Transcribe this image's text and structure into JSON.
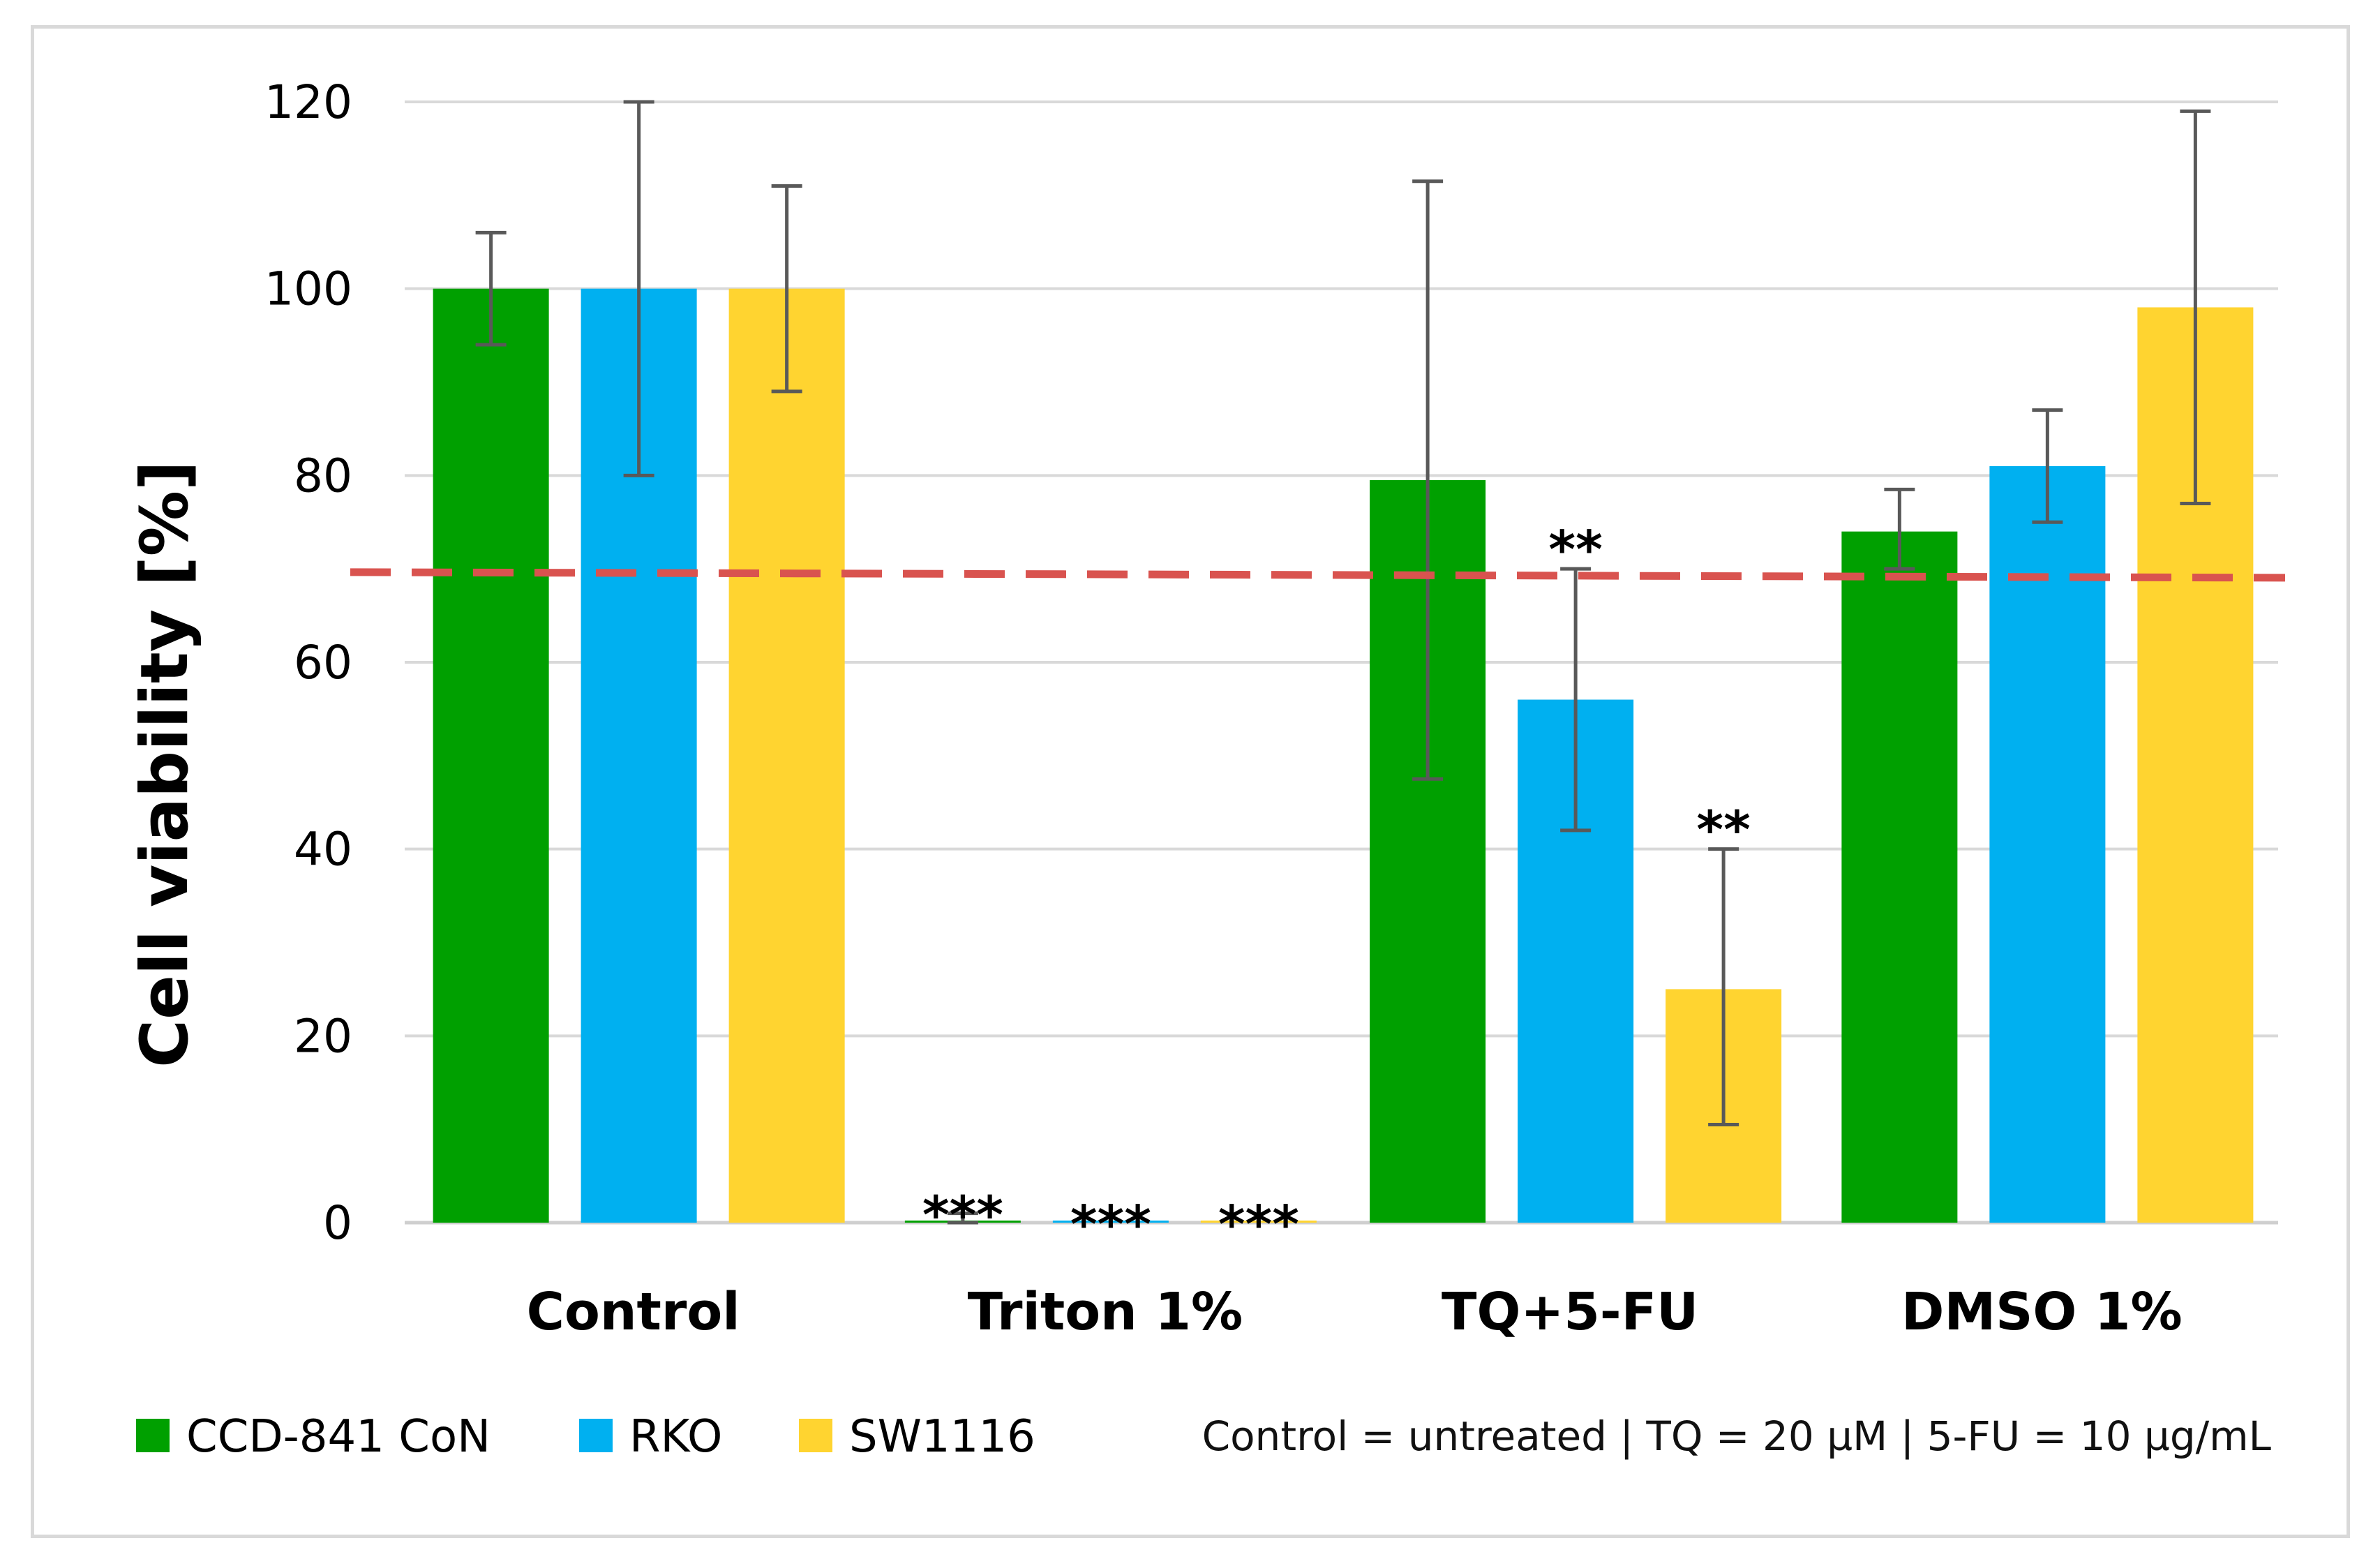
{
  "chart_data": {
    "type": "bar",
    "title": "",
    "xlabel": "",
    "ylabel": "Cell viability [%]",
    "ylim": [
      0,
      120
    ],
    "yticks": [
      0,
      20,
      40,
      60,
      80,
      100,
      120
    ],
    "grid": true,
    "categories": [
      "Control",
      "Triton 1%",
      "TQ+5-FU",
      "DMSO 1%"
    ],
    "series": [
      {
        "name": "CCD-841 CoN",
        "color": "#00a000",
        "values": [
          100,
          0,
          79.5,
          74
        ],
        "error": [
          [
            94,
            106
          ],
          [
            0,
            1
          ],
          [
            47.5,
            111.5
          ],
          [
            70,
            78.5
          ]
        ]
      },
      {
        "name": "RKO",
        "color": "#00b0f0",
        "values": [
          100,
          0,
          56,
          81
        ],
        "error": [
          [
            80,
            120
          ],
          null,
          [
            42,
            70
          ],
          [
            75,
            87
          ]
        ]
      },
      {
        "name": "SW1116",
        "color": "#ffd430",
        "values": [
          100,
          0,
          25,
          98
        ],
        "error": [
          [
            89,
            111
          ],
          null,
          [
            10.5,
            40
          ],
          [
            77,
            119
          ]
        ]
      }
    ],
    "reference_line": {
      "value": 69.5,
      "color": "#d9534f",
      "style": "dashed"
    },
    "annotations": [
      {
        "category": 1,
        "series": 0,
        "text": "***"
      },
      {
        "category": 1,
        "series": 1,
        "text": "***"
      },
      {
        "category": 1,
        "series": 2,
        "text": "***"
      },
      {
        "category": 2,
        "series": 1,
        "text": "**"
      },
      {
        "category": 2,
        "series": 2,
        "text": "**"
      }
    ],
    "legend_position": "bottom-left",
    "note": "Control = untreated |  TQ = 20 µM | 5-FU = 10 µg/mL"
  }
}
